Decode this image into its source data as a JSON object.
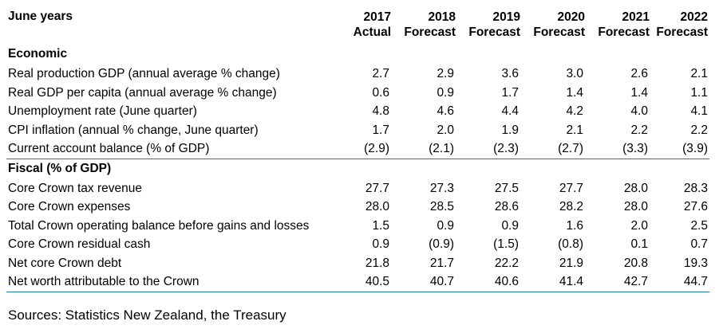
{
  "table": {
    "stub_header": "June years",
    "columns": [
      {
        "year": "2017",
        "type": "Actual"
      },
      {
        "year": "2018",
        "type": "Forecast"
      },
      {
        "year": "2019",
        "type": "Forecast"
      },
      {
        "year": "2020",
        "type": "Forecast"
      },
      {
        "year": "2021",
        "type": "Forecast"
      },
      {
        "year": "2022",
        "type": "Forecast"
      }
    ],
    "sections": [
      {
        "title": "Economic",
        "rows": [
          {
            "label": "Real production GDP (annual average % change)",
            "values": [
              "2.7",
              "2.9",
              "3.6",
              "3.0",
              "2.6",
              "2.1"
            ]
          },
          {
            "label": "Real GDP per capita (annual average % change)",
            "values": [
              "0.6",
              "0.9",
              "1.7",
              "1.4",
              "1.4",
              "1.1"
            ]
          },
          {
            "label": "Unemployment rate (June quarter)",
            "values": [
              "4.8",
              "4.6",
              "4.4",
              "4.2",
              "4.0",
              "4.1"
            ]
          },
          {
            "label": "CPI inflation (annual % change, June quarter)",
            "values": [
              "1.7",
              "2.0",
              "1.9",
              "2.1",
              "2.2",
              "2.2"
            ]
          },
          {
            "label": "Current account balance (% of GDP)",
            "values": [
              "(2.9)",
              "(2.1)",
              "(2.3)",
              "(2.7)",
              "(3.3)",
              "(3.9)"
            ]
          }
        ]
      },
      {
        "title": "Fiscal (% of GDP)",
        "rows": [
          {
            "label": "Core Crown tax revenue",
            "values": [
              "27.7",
              "27.3",
              "27.5",
              "27.7",
              "28.0",
              "28.3"
            ]
          },
          {
            "label": "Core Crown expenses",
            "values": [
              "28.0",
              "28.5",
              "28.6",
              "28.2",
              "28.0",
              "27.6"
            ]
          },
          {
            "label": "Total Crown operating balance before gains and losses",
            "values": [
              "1.5",
              "0.9",
              "0.9",
              "1.6",
              "2.0",
              "2.5"
            ]
          },
          {
            "label": "Core Crown residual cash",
            "values": [
              "0.9",
              "(0.9)",
              "(1.5)",
              "(0.8)",
              "0.1",
              "0.7"
            ]
          },
          {
            "label": "Net core Crown debt",
            "values": [
              "21.8",
              "21.7",
              "22.2",
              "21.9",
              "20.8",
              "19.3"
            ]
          },
          {
            "label": "Net worth attributable to the Crown",
            "values": [
              "40.5",
              "40.7",
              "40.6",
              "41.4",
              "42.7",
              "44.7"
            ]
          }
        ]
      }
    ],
    "source_note": "Sources: Statistics New Zealand, the Treasury"
  },
  "colors": {
    "rule": "#1a7aa8",
    "text": "#000000"
  }
}
